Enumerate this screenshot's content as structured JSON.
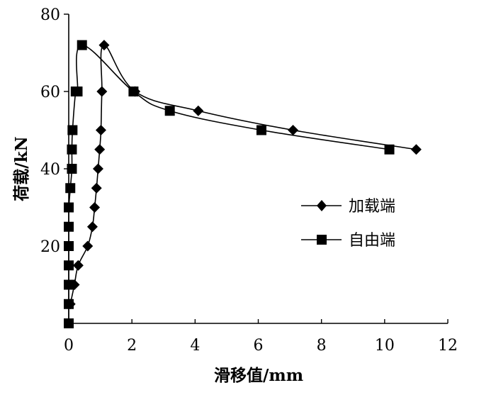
{
  "chart_data": {
    "type": "line",
    "title": "",
    "xlabel": "滑移值/mm",
    "ylabel": "荷载/kN",
    "xlim": [
      0,
      12
    ],
    "ylim": [
      0,
      80
    ],
    "xticks": [
      0,
      2,
      4,
      6,
      8,
      10,
      12
    ],
    "yticks": [
      20,
      40,
      60,
      80
    ],
    "grid": false,
    "legend_position": "right",
    "series": [
      {
        "name": "加载端",
        "marker": "diamond",
        "x": [
          0.05,
          0.18,
          0.3,
          0.6,
          0.75,
          0.82,
          0.88,
          0.93,
          0.98,
          1.02,
          1.05,
          1.12,
          2.1,
          4.1,
          7.1,
          11.0
        ],
        "y": [
          5,
          10,
          15,
          20,
          25,
          30,
          35,
          40,
          45,
          50,
          60,
          72,
          60,
          55,
          50,
          45
        ]
      },
      {
        "name": "自由端",
        "marker": "square",
        "x": [
          0,
          0,
          0,
          0,
          0,
          0,
          0,
          0,
          0.05,
          0.1,
          0.1,
          0.12,
          0.22,
          0.28,
          0.42,
          2.05,
          3.2,
          6.1,
          10.15
        ],
        "y": [
          0,
          5,
          10,
          15,
          20,
          25,
          30,
          30,
          35,
          40,
          45,
          50,
          60,
          60,
          72,
          60,
          55,
          50,
          45
        ]
      }
    ]
  }
}
